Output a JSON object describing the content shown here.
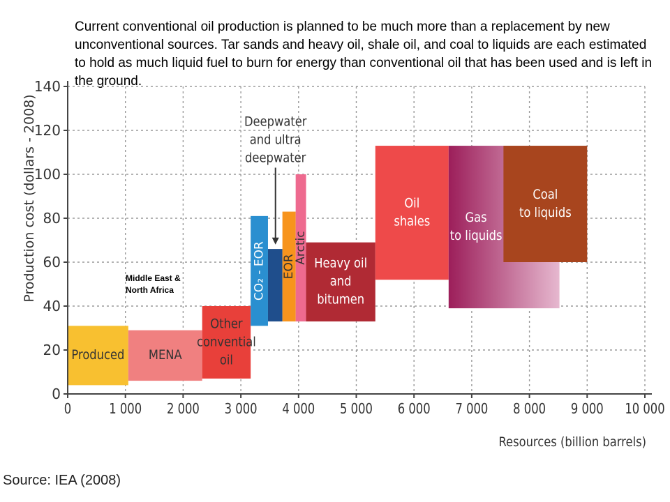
{
  "caption": "Current conventional  oil production is planned to be much more than a replacement  by new unconventional sources. Tar sands and heavy oil,  shale oil, and coal to liquids are each estimated to hold as much liquid fuel to burn for energy than conventional oil  that has been used and is left in the ground.",
  "source": "Source: IEA (2008)",
  "annotation": "Middle East & North Africa",
  "chart_data": {
    "type": "bar",
    "title": "",
    "xlabel": "Resources (billion barrels)",
    "ylabel": "Production cost (dollars - 2008)",
    "xlim": [
      0,
      10000
    ],
    "ylim": [
      0,
      140
    ],
    "grid": true,
    "x_ticks": [
      "0",
      "1 000",
      "2 000",
      "3 000",
      "4 000",
      "5 000",
      "6 000",
      "7 000",
      "8 000",
      "9 000",
      "10 000"
    ],
    "y_ticks": [
      "0",
      "20",
      "40",
      "60",
      "80",
      "100",
      "120",
      "140"
    ],
    "blocks": [
      {
        "label": [
          "Produced"
        ],
        "x0": 0,
        "x1": 1050,
        "y0": 4,
        "y1": 31,
        "color": "#F8C030",
        "text_color": "#333333",
        "label_rotate": false
      },
      {
        "label": [
          "MENA"
        ],
        "x0": 1050,
        "x1": 2330,
        "y0": 6,
        "y1": 29,
        "color": "#F08080",
        "text_color": "#333333",
        "label_rotate": false
      },
      {
        "label": [
          "Other",
          "convential",
          "oil"
        ],
        "x0": 2330,
        "x1": 3170,
        "y0": 7,
        "y1": 40,
        "color": "#E8403A",
        "text_color": "#333333",
        "label_rotate": false
      },
      {
        "label": [
          "CO₂ - EOR"
        ],
        "x0": 3170,
        "x1": 3470,
        "y0": 31,
        "y1": 81,
        "color": "#2A8FD0",
        "text_color": "#ffffff",
        "label_rotate": true
      },
      {
        "label": [
          ""
        ],
        "x0": 3470,
        "x1": 3720,
        "y0": 33,
        "y1": 66,
        "color": "#1F4E8C",
        "text_color": "#ffffff",
        "label_rotate": false
      },
      {
        "label": [
          "EOR"
        ],
        "x0": 3720,
        "x1": 3950,
        "y0": 33,
        "y1": 83,
        "color": "#F7941D",
        "text_color": "#333333",
        "label_rotate": true
      },
      {
        "label": [
          "Arctic"
        ],
        "x0": 3950,
        "x1": 4130,
        "y0": 33,
        "y1": 100,
        "color": "#EE6A8F",
        "text_color": "#333333",
        "label_rotate": true
      },
      {
        "label": [
          "Heavy oil",
          "and",
          "bitumen"
        ],
        "x0": 4130,
        "x1": 5330,
        "y0": 33,
        "y1": 69,
        "color": "#B02A34",
        "text_color": "#ffffff",
        "label_rotate": false
      },
      {
        "label": [
          "Oil",
          "shales"
        ],
        "x0": 5330,
        "x1": 6600,
        "y0": 52,
        "y1": 113,
        "color": "#EE4A4A",
        "text_color": "#ffffff",
        "label_rotate": false
      },
      {
        "label": [
          "Gas",
          "to liquids"
        ],
        "x0": 6600,
        "x1": 8520,
        "y0": 39,
        "y1": 113,
        "color": "#9C1E5A",
        "text_color": "#ffffff",
        "label_rotate": false
      },
      {
        "label": [
          "Coal",
          "to liquids"
        ],
        "x0": 7550,
        "x1": 9000,
        "y0": 60,
        "y1": 113,
        "color": "#A8451E",
        "text_color": "#ffffff",
        "label_rotate": false
      }
    ],
    "pointer": {
      "label": [
        "Deepwater",
        "and ultra",
        "deepwater"
      ],
      "x": 3600,
      "y_from": 103,
      "y_to": 68
    }
  }
}
